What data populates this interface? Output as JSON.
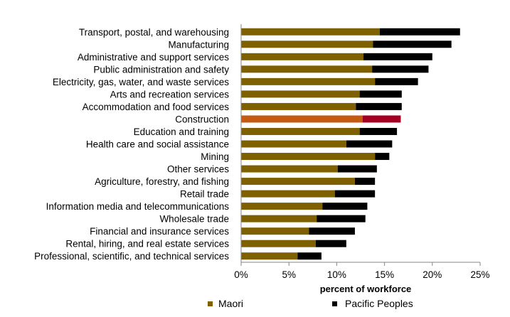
{
  "chart_data": {
    "type": "bar",
    "orientation": "horizontal",
    "stacked": true,
    "categories": [
      "Transport, postal, and warehousing",
      "Manufacturing",
      "Administrative and support services",
      "Public administration and safety",
      "Electricity, gas, water, and waste services",
      "Arts and recreation services",
      "Accommodation and food services",
      "Construction",
      "Education and training",
      "Health care and social assistance",
      "Mining",
      "Other services",
      "Agriculture, forestry, and fishing",
      "Retail trade",
      "Information media and telecommunications",
      "Wholesale trade",
      "Financial and insurance services",
      "Rental, hiring, and real estate services",
      "Professional, scientific, and technical services"
    ],
    "series": [
      {
        "name": "Maori",
        "color": "#7f6000",
        "values": [
          14.5,
          13.8,
          12.8,
          13.7,
          14.0,
          12.4,
          12.0,
          12.7,
          12.4,
          11.0,
          14.0,
          10.1,
          11.9,
          9.8,
          8.5,
          7.9,
          7.1,
          7.8,
          5.9
        ]
      },
      {
        "name": "Pacific Peoples",
        "color": "#000000",
        "values": [
          8.4,
          8.2,
          7.2,
          5.9,
          4.5,
          4.4,
          4.8,
          4.0,
          3.9,
          4.8,
          1.5,
          4.1,
          2.1,
          4.2,
          4.7,
          5.1,
          4.8,
          3.2,
          2.5
        ]
      }
    ],
    "highlight": {
      "category": "Construction",
      "colors": [
        "#c55a11",
        "#a50021"
      ]
    },
    "xlabel": "percent of workforce",
    "ylabel": "",
    "xlim": [
      0,
      25
    ],
    "xticks": [
      0,
      5,
      10,
      15,
      20,
      25
    ],
    "tick_format": "%",
    "grid": false,
    "legend_position": "bottom"
  }
}
